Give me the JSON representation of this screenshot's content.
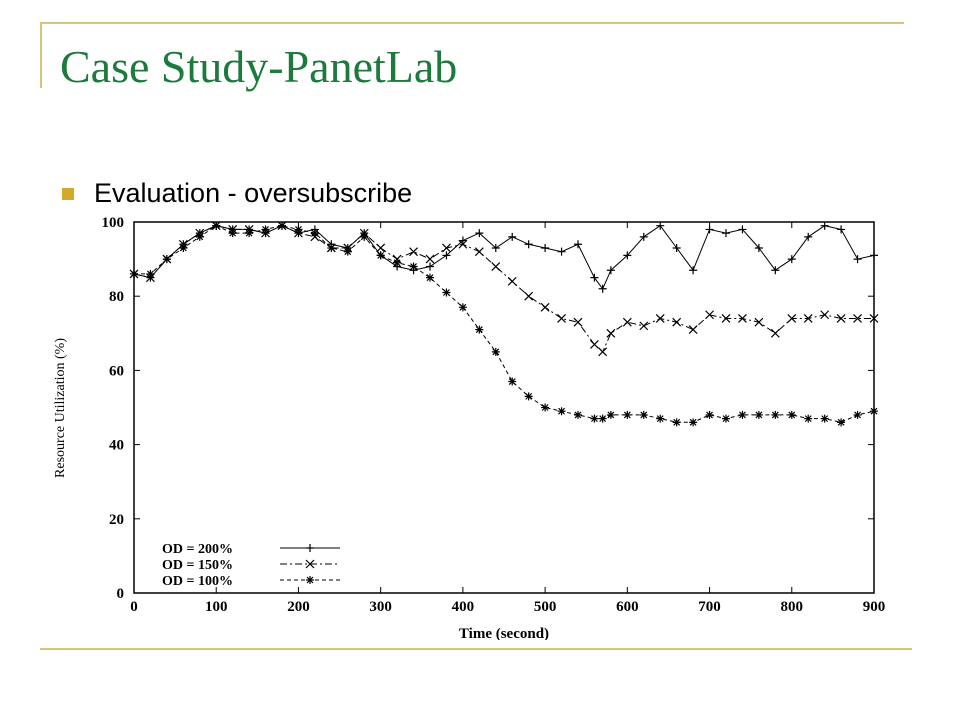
{
  "slide": {
    "title": "Case Study-PanetLab",
    "bullet": "Evaluation  - oversubscribe"
  },
  "colors": {
    "title": "#1b7a3c",
    "bullet": "#d4a82a",
    "rule": "#d4c77a",
    "series": "#000000"
  },
  "chart_data": {
    "type": "line",
    "title": "",
    "xlabel": "Time (second)",
    "ylabel": "Resource Utilization (%)",
    "xlim": [
      0,
      900
    ],
    "ylim": [
      0,
      100
    ],
    "xticks": [
      0,
      100,
      200,
      300,
      400,
      500,
      600,
      700,
      800,
      900
    ],
    "yticks": [
      0,
      20,
      40,
      60,
      80,
      100
    ],
    "grid": false,
    "legend": "bottom-left",
    "series": [
      {
        "name": "OD = 200%",
        "marker": "+",
        "dash": "solid",
        "x": [
          0,
          20,
          40,
          60,
          80,
          100,
          120,
          140,
          160,
          180,
          200,
          220,
          240,
          260,
          280,
          300,
          320,
          340,
          360,
          380,
          400,
          420,
          440,
          460,
          480,
          500,
          520,
          540,
          560,
          570,
          580,
          600,
          620,
          640,
          660,
          680,
          700,
          720,
          740,
          760,
          780,
          800,
          820,
          840,
          860,
          880,
          900
        ],
        "y": [
          86,
          85,
          90,
          94,
          97,
          99,
          98,
          98,
          97,
          99,
          97,
          98,
          94,
          93,
          97,
          91,
          88,
          87,
          88,
          91,
          95,
          97,
          93,
          96,
          94,
          93,
          92,
          94,
          85,
          82,
          87,
          91,
          96,
          99,
          93,
          87,
          98,
          97,
          98,
          93,
          87,
          90,
          96,
          99,
          98,
          90,
          91
        ]
      },
      {
        "name": "OD = 150%",
        "marker": "x",
        "dash": "dashdot",
        "x": [
          0,
          20,
          40,
          60,
          80,
          100,
          120,
          140,
          160,
          180,
          200,
          220,
          240,
          260,
          280,
          300,
          320,
          340,
          360,
          380,
          400,
          420,
          440,
          460,
          480,
          500,
          520,
          540,
          560,
          570,
          580,
          600,
          620,
          640,
          660,
          680,
          700,
          720,
          740,
          760,
          780,
          800,
          820,
          840,
          860,
          880,
          900
        ],
        "y": [
          86,
          85,
          90,
          94,
          97,
          99,
          98,
          98,
          97,
          99,
          97,
          96,
          93,
          93,
          97,
          93,
          90,
          92,
          90,
          93,
          94,
          92,
          88,
          84,
          80,
          77,
          74,
          73,
          67,
          65,
          70,
          73,
          72,
          74,
          73,
          71,
          75,
          74,
          74,
          73,
          70,
          74,
          74,
          75,
          74,
          74,
          74
        ]
      },
      {
        "name": "OD = 100%",
        "marker": "*",
        "dash": "dashed",
        "x": [
          0,
          20,
          40,
          60,
          80,
          100,
          120,
          140,
          160,
          180,
          200,
          220,
          240,
          260,
          280,
          300,
          320,
          340,
          360,
          380,
          400,
          420,
          440,
          460,
          480,
          500,
          520,
          540,
          560,
          570,
          580,
          600,
          620,
          640,
          660,
          680,
          700,
          720,
          740,
          760,
          780,
          800,
          820,
          840,
          860,
          880,
          900
        ],
        "y": [
          86,
          86,
          90,
          93,
          96,
          99,
          97,
          97,
          98,
          99,
          98,
          97,
          93,
          92,
          96,
          91,
          89,
          88,
          85,
          81,
          77,
          71,
          65,
          57,
          53,
          50,
          49,
          48,
          47,
          47,
          48,
          48,
          48,
          47,
          46,
          46,
          48,
          47,
          48,
          48,
          48,
          48,
          47,
          47,
          46,
          48,
          49
        ]
      }
    ]
  }
}
